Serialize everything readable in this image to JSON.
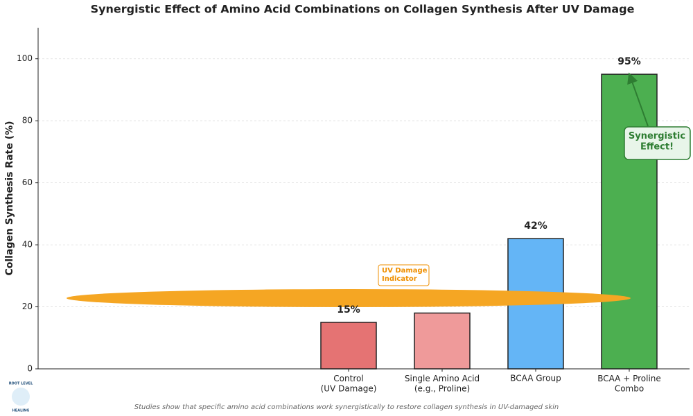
{
  "chart_data": {
    "type": "bar",
    "title": "Synergistic Effect of Amino Acid Combinations on Collagen Synthesis After UV Damage",
    "y_label": "Collagen Synthesis Rate (%)",
    "categories": [
      null,
      null,
      null,
      "Control\n(UV Damage)",
      "Single Amino Acid\n(e.g., Proline)",
      "BCAA Group",
      "BCAA + Proline\nCombo"
    ],
    "values": [
      null,
      null,
      null,
      15,
      18,
      42,
      95
    ],
    "value_labels": [
      null,
      null,
      null,
      "15%",
      null,
      "42%",
      "95%"
    ],
    "colors": [
      null,
      null,
      null,
      "#e57373",
      "#ef9a9a",
      "#64b5f6",
      "#4caf50"
    ],
    "ylim": [
      0,
      110
    ],
    "yticks": [
      0,
      20,
      40,
      60,
      80,
      100
    ],
    "grid": true,
    "annotations": [
      "UV Damage\nIndicator",
      "Synergistic\nEffect!"
    ],
    "footnote": "Studies show that specific amino acid combinations work synergistically to restore collagen synthesis in UV-damaged skin"
  },
  "logo": {
    "top": "ROOT LEVEL",
    "bottom": "HEALING"
  }
}
